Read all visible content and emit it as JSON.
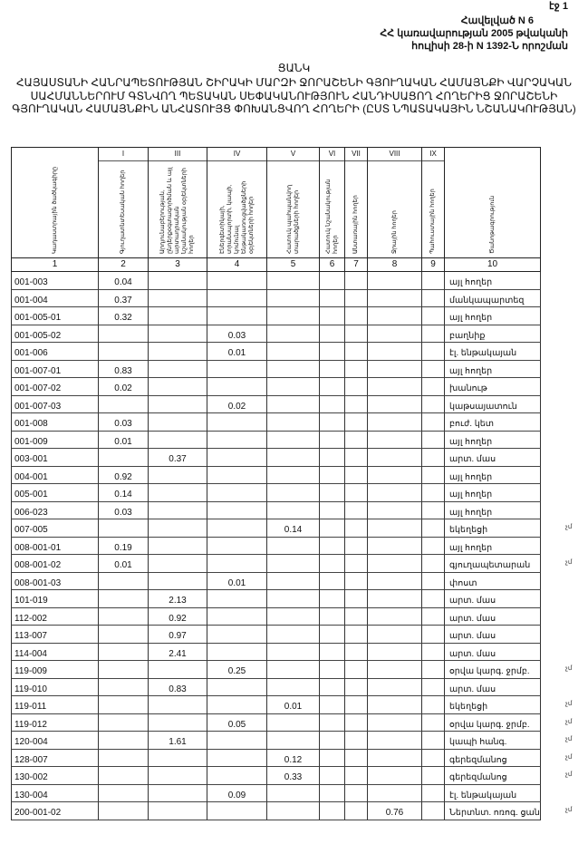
{
  "page_number": "էջ 1",
  "appendix": {
    "line1": "Հավելված N 6",
    "line2": "ՀՀ կառավարության 2005 թվականի",
    "line3": "հուլիսի 28-ի N 1392-Ն որոշման"
  },
  "title": "ՑԱՆԿ",
  "subtitle": "ՀԱՅԱՍՏԱՆԻ ՀԱՆՐԱՊԵՏՈՒԹՅԱՆ ՇԻՐԱԿԻ ՄԱՐԶԻ ՋՈՐԱՇԵՆԻ ԳՅՈՒՂԱԿԱՆ ՀԱՄԱՅՆՔԻ ՎԱՐՉԱԿԱՆ ՍԱՀՄԱՆՆԵՐՈՒՄ ԳՏՆՎՈՂ ՊԵՏԱԿԱՆ ՍԵՓԱԿԱՆՈՒԹՅՈՒՆ ՀԱՆԴԻՍԱՑՈՂ ՀՈՂԵՐԻՑ ՋՈՐԱՇԵՆԻ ԳՅՈՒՂԱԿԱՆ ՀԱՄԱՅՆՔԻՆ ԱՆՀԱՏՈՒՅՑ ՓՈԽԱՆՑՎՈՂ ՀՈՂԵՐԻ (ԸՍՏ ՆՊԱՏԱԿԱՅԻՆ ՆՇԱՆԱԿՈՒԹՅԱՆ)",
  "table": {
    "columns": [
      {
        "roman": "",
        "label": "Կադաստրային ծածկագիրը",
        "number": "1"
      },
      {
        "roman": "I",
        "label": "Գյուղատնտեսական հողեր",
        "number": "2"
      },
      {
        "roman": "III",
        "label": "Արդյունաբերության, ընդերքօգտագործման և այլ արտադրական նշանակության օբյեկտների հողեր",
        "number": "3"
      },
      {
        "roman": "IV",
        "label": "Էներգետիկայի, տրանսպորտի, կապի, կոմունալ ենթակառուցվածքների օբյեկտների հողեր",
        "number": "4"
      },
      {
        "roman": "V",
        "label": "Հատուկ պահպանվող տարածքների հողեր",
        "number": "5"
      },
      {
        "roman": "VI",
        "label": "Հատուկ նշանակության հողեր",
        "number": "6"
      },
      {
        "roman": "VII",
        "label": "Անտառային հողեր",
        "number": "7"
      },
      {
        "roman": "VIII",
        "label": "Ջրային հողեր",
        "number": "8"
      },
      {
        "roman": "IX",
        "label": "Պահուստային հողեր",
        "number": "9"
      },
      {
        "roman": "",
        "label": "Ծանոթագրություն",
        "number": "10"
      }
    ],
    "rows": [
      {
        "code": "001-003",
        "col": 2,
        "value": "0.04",
        "note": "այլ հողեր"
      },
      {
        "code": "001-004",
        "col": 2,
        "value": "0.37",
        "note": "մանկապարտեզ"
      },
      {
        "code": "001-005-01",
        "col": 2,
        "value": "0.32",
        "note": "այլ հողեր"
      },
      {
        "code": "001-005-02",
        "col": 4,
        "value": "0.03",
        "note": "բաղնիք"
      },
      {
        "code": "001-006",
        "col": 4,
        "value": "0.01",
        "note": "էլ. ենթակայան"
      },
      {
        "code": "001-007-01",
        "col": 2,
        "value": "0.83",
        "note": "այլ հողեր"
      },
      {
        "code": "001-007-02",
        "col": 2,
        "value": "0.02",
        "note": "խանութ"
      },
      {
        "code": "001-007-03",
        "col": 4,
        "value": "0.02",
        "note": "կաթսայատուն"
      },
      {
        "code": "001-008",
        "col": 2,
        "value": "0.03",
        "note": "բուժ. կետ"
      },
      {
        "code": "001-009",
        "col": 2,
        "value": "0.01",
        "note": "այլ հողեր"
      },
      {
        "code": "003-001",
        "col": 3,
        "value": "0.37",
        "note": "արտ. մաս"
      },
      {
        "code": "004-001",
        "col": 2,
        "value": "0.92",
        "note": "այլ հողեր"
      },
      {
        "code": "005-001",
        "col": 2,
        "value": "0.14",
        "note": "այլ հողեր"
      },
      {
        "code": "006-023",
        "col": 2,
        "value": "0.03",
        "note": "այլ հողեր"
      },
      {
        "code": "007-005",
        "col": 5,
        "value": "0.14",
        "note": "եկեղեցի",
        "mark": "չմ"
      },
      {
        "code": "008-001-01",
        "col": 2,
        "value": "0.19",
        "note": "այլ հողեր"
      },
      {
        "code": "008-001-02",
        "col": 2,
        "value": "0.01",
        "note": "գյուղապետարան",
        "mark": "չմ"
      },
      {
        "code": "008-001-03",
        "col": 4,
        "value": "0.01",
        "note": "փոստ"
      },
      {
        "code": "101-019",
        "col": 3,
        "value": "2.13",
        "note": "արտ. մաս"
      },
      {
        "code": "112-002",
        "col": 3,
        "value": "0.92",
        "note": "արտ. մաս"
      },
      {
        "code": "113-007",
        "col": 3,
        "value": "0.97",
        "note": "արտ. մաս"
      },
      {
        "code": "114-004",
        "col": 3,
        "value": "2.41",
        "note": "արտ. մաս"
      },
      {
        "code": "119-009",
        "col": 4,
        "value": "0.25",
        "note": "օրվա կարգ. ջրմբ.",
        "mark": "չմ"
      },
      {
        "code": "119-010",
        "col": 3,
        "value": "0.83",
        "note": "արտ. մաս"
      },
      {
        "code": "119-011",
        "col": 5,
        "value": "0.01",
        "note": "եկեղեցի",
        "mark": "չմ"
      },
      {
        "code": "119-012",
        "col": 4,
        "value": "0.05",
        "note": "օրվա կարգ. ջրմբ.",
        "mark": "չմ"
      },
      {
        "code": "120-004",
        "col": 3,
        "value": "1.61",
        "note": "կապի հանգ.",
        "mark": "չմ"
      },
      {
        "code": "128-007",
        "col": 5,
        "value": "0.12",
        "note": "գերեզմանոց",
        "mark": "չմ"
      },
      {
        "code": "130-002",
        "col": 5,
        "value": "0.33",
        "note": "գերեզմանոց",
        "mark": "չմ"
      },
      {
        "code": "130-004",
        "col": 4,
        "value": "0.09",
        "note": "էլ. ենթակայան"
      },
      {
        "code": "200-001-02",
        "col": 8,
        "value": "0.76",
        "note": "Ներտնտ. ոռոգ. ցանց",
        "mark": "չմ"
      }
    ]
  }
}
